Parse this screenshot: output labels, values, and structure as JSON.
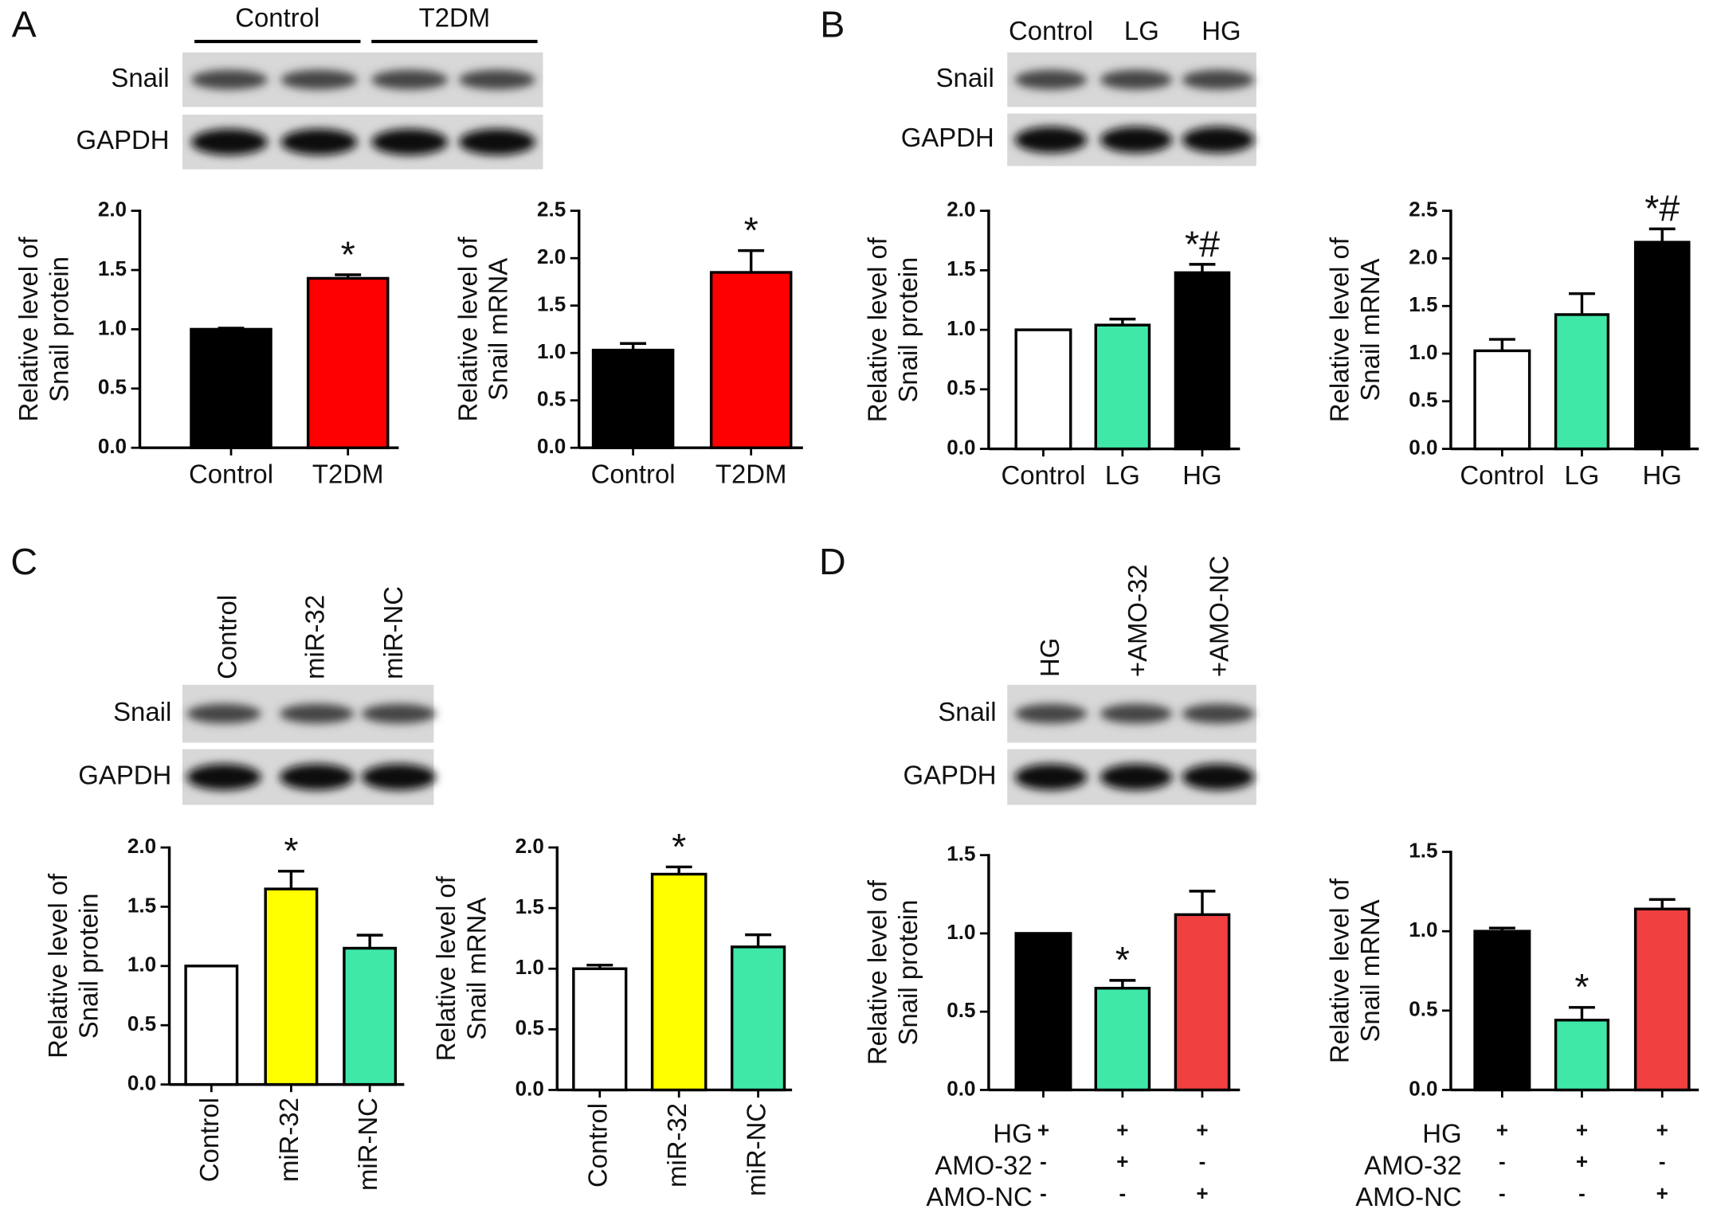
{
  "panels": [
    {
      "letter": "A",
      "lanes": [
        "Control",
        "T2DM"
      ],
      "rows": [
        "Snail",
        "GAPDH"
      ]
    },
    {
      "letter": "B",
      "lanes": [
        "Control",
        "LG",
        "HG"
      ],
      "rows": [
        "Snail",
        "GAPDH"
      ]
    },
    {
      "letter": "C",
      "lanes": [
        "Control",
        "miR-32",
        "miR-NC"
      ],
      "rows": [
        "Snail",
        "GAPDH"
      ]
    },
    {
      "letter": "D",
      "lanes": [
        "HG",
        "+AMO-32",
        "+AMO-NC"
      ],
      "rows": [
        "Snail",
        "GAPDH"
      ]
    }
  ],
  "chart_data": [
    {
      "type": "bar",
      "ylabel": [
        "Relative level of",
        "Snail protein"
      ],
      "categories": [
        "Control",
        "T2DM"
      ],
      "values": [
        1.0,
        1.43
      ],
      "errors": [
        0.01,
        0.03
      ],
      "colors": [
        "#000000",
        "#ff0000"
      ],
      "annotations": [
        null,
        "*"
      ],
      "ylim": [
        0,
        2
      ],
      "yticks": [
        {
          "value": 0,
          "label": "0.0"
        },
        {
          "value": 0.5,
          "label": "0.5"
        },
        {
          "value": 1,
          "label": "1.0"
        },
        {
          "value": 1.5,
          "label": "1.5"
        },
        {
          "value": 2,
          "label": "2.0"
        }
      ]
    },
    {
      "type": "bar",
      "ylabel": [
        "Relative level of",
        "Snail mRNA"
      ],
      "categories": [
        "Control",
        "T2DM"
      ],
      "values": [
        1.03,
        1.85
      ],
      "errors": [
        0.07,
        0.23
      ],
      "colors": [
        "#000000",
        "#ff0000"
      ],
      "annotations": [
        null,
        "*"
      ],
      "ylim": [
        0,
        2.5
      ],
      "yticks": [
        {
          "value": 0,
          "label": "0.0"
        },
        {
          "value": 0.5,
          "label": "0.5"
        },
        {
          "value": 1,
          "label": "1.0"
        },
        {
          "value": 1.5,
          "label": "1.5"
        },
        {
          "value": 2,
          "label": "2.0"
        },
        2.5
      ]
    },
    {
      "type": "bar",
      "ylabel": [
        "Relative level of",
        "Snail protein"
      ],
      "categories": [
        "Control",
        "LG",
        "HG"
      ],
      "values": [
        1.0,
        1.04,
        1.48
      ],
      "errors": [
        null,
        0.05,
        0.07
      ],
      "colors": [
        "#ffffff",
        "#40e8a8",
        "#000000"
      ],
      "annotations": [
        null,
        null,
        "*#"
      ],
      "ylim": [
        0,
        2
      ],
      "yticks": [
        {
          "value": 0,
          "label": "0.0"
        },
        {
          "value": 0.5,
          "label": "0.5"
        },
        {
          "value": 1,
          "label": "1.0"
        },
        {
          "value": 1.5,
          "label": "1.5"
        },
        {
          "value": 2,
          "label": "2.0"
        }
      ]
    },
    {
      "type": "bar",
      "ylabel": [
        "Relative level of",
        "Snail mRNA"
      ],
      "categories": [
        "Control",
        "LG",
        "HG"
      ],
      "values": [
        1.03,
        1.41,
        2.17
      ],
      "errors": [
        0.12,
        0.22,
        0.14
      ],
      "colors": [
        "#ffffff",
        "#40e8a8",
        "#000000"
      ],
      "annotations": [
        null,
        null,
        "*#"
      ],
      "ylim": [
        0,
        2.5
      ],
      "yticks": [
        {
          "value": 0,
          "label": "0.0"
        },
        {
          "value": 0.5,
          "label": "0.5"
        },
        {
          "value": 1,
          "label": "1.0"
        },
        {
          "value": 1.5,
          "label": "1.5"
        },
        {
          "value": 2,
          "label": "2.0"
        },
        2.5
      ]
    },
    {
      "type": "bar",
      "ylabel": [
        "Relative level of",
        "Snail protein"
      ],
      "categories": [
        "Control",
        "miR-32",
        "miR-NC"
      ],
      "rotate_categories": true,
      "values": [
        1.0,
        1.65,
        1.15
      ],
      "errors": [
        null,
        0.15,
        0.11
      ],
      "colors": [
        "#ffffff",
        "#ffff00",
        "#40e8a8"
      ],
      "annotations": [
        null,
        "*",
        null
      ],
      "ylim": [
        0,
        2
      ],
      "yticks": [
        {
          "value": 0,
          "label": "0.0"
        },
        {
          "value": 0.5,
          "label": "0.5"
        },
        {
          "value": 1,
          "label": "1.0"
        },
        {
          "value": 1.5,
          "label": "1.5"
        },
        {
          "value": 2,
          "label": "2.0"
        }
      ]
    },
    {
      "type": "bar",
      "ylabel": [
        "Relative level of",
        "Snail mRNA"
      ],
      "categories": [
        "Control",
        "miR-32",
        "miR-NC"
      ],
      "rotate_categories": true,
      "values": [
        1.0,
        1.78,
        1.18
      ],
      "errors": [
        0.03,
        0.06,
        0.1
      ],
      "colors": [
        "#ffffff",
        "#ffff00",
        "#40e8a8"
      ],
      "annotations": [
        null,
        "*",
        null
      ],
      "ylim": [
        0,
        2
      ],
      "yticks": [
        {
          "value": 0,
          "label": "0.0"
        },
        {
          "value": 0.5,
          "label": "0.5"
        },
        {
          "value": 1,
          "label": "1.0"
        },
        {
          "value": 1.5,
          "label": "1.5"
        },
        {
          "value": 2,
          "label": "2.0"
        }
      ]
    },
    {
      "type": "bar",
      "ylabel": [
        "Relative level of",
        "Snail protein"
      ],
      "treatments": {
        "rows": [
          "HG",
          "AMO-32",
          "AMO-NC"
        ],
        "signs": [
          [
            "+",
            "+",
            "+"
          ],
          [
            "-",
            "+",
            "-"
          ],
          [
            "-",
            "-",
            "+"
          ]
        ]
      },
      "values": [
        1.0,
        0.65,
        1.12
      ],
      "errors": [
        null,
        0.05,
        0.15
      ],
      "colors": [
        "#000000",
        "#40e8a8",
        "#f04040"
      ],
      "annotations": [
        null,
        "*",
        null
      ],
      "ylim": [
        0,
        1.5
      ],
      "yticks": [
        {
          "value": 0,
          "label": "0.0"
        },
        {
          "value": 0.5,
          "label": "0.5"
        },
        {
          "value": 1,
          "label": "1.0"
        },
        {
          "value": 1.5,
          "label": "1.5"
        }
      ]
    },
    {
      "type": "bar",
      "ylabel": [
        "Relative level of",
        "Snail mRNA"
      ],
      "treatments": {
        "rows": [
          "HG",
          "AMO-32",
          "AMO-NC"
        ],
        "signs": [
          [
            "+",
            "+",
            "+"
          ],
          [
            "-",
            "+",
            "-"
          ],
          [
            "-",
            "-",
            "+"
          ]
        ]
      },
      "values": [
        1.0,
        0.44,
        1.14
      ],
      "errors": [
        0.02,
        0.08,
        0.06
      ],
      "colors": [
        "#000000",
        "#40e8a8",
        "#f04040"
      ],
      "annotations": [
        null,
        "*",
        null
      ],
      "ylim": [
        0,
        1.5
      ],
      "yticks": [
        {
          "value": 0,
          "label": "0.0"
        },
        {
          "value": 0.5,
          "label": "0.5"
        },
        {
          "value": 1,
          "label": "1.0"
        },
        {
          "value": 1.5,
          "label": "1.5"
        }
      ]
    }
  ]
}
